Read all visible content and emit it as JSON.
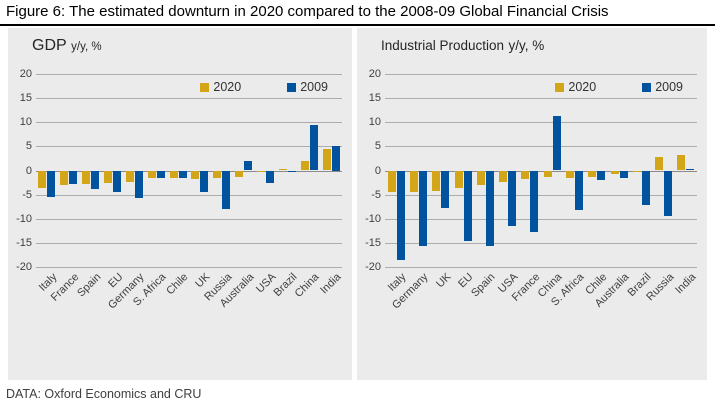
{
  "figure": {
    "title": "Figure 6: The estimated downturn in 2020 compared to the 2008-09 Global Financial Crisis",
    "source": "DATA: Oxford Economics and CRU"
  },
  "colors": {
    "series_2020": "#D3A518",
    "series_2009": "#00539C",
    "panel_bg": "#EBEBEB",
    "gridline": "#ACACAC",
    "text": "#404040"
  },
  "chart_data": [
    {
      "type": "bar",
      "title_main": "GDP",
      "title_suffix": "y/y, %",
      "categories": [
        "Italy",
        "France",
        "Spain",
        "EU",
        "Germany",
        "S. Africa",
        "Chile",
        "UK",
        "Russia",
        "Australia",
        "USA",
        "Brazil",
        "China",
        "India"
      ],
      "series": [
        {
          "name": "2020",
          "color": "#D3A518",
          "values": [
            -3.6,
            -3.1,
            -2.7,
            -2.6,
            -2.4,
            -1.6,
            -1.6,
            -1.7,
            -1.6,
            -1.3,
            -0.4,
            0.3,
            2.0,
            4.4
          ]
        },
        {
          "name": "2009",
          "color": "#00539C",
          "values": [
            -5.4,
            -2.9,
            -3.8,
            -4.5,
            -5.7,
            -1.5,
            -1.6,
            -4.4,
            -7.9,
            1.9,
            -2.5,
            -0.3,
            9.4,
            5.0
          ]
        }
      ],
      "ylim": [
        -20,
        20
      ],
      "ytick_step": 5,
      "grid": true,
      "legend_position": "top-right"
    },
    {
      "type": "bar",
      "title_main": "Industrial Production",
      "title_suffix": "y/y, %",
      "categories": [
        "Italy",
        "Germany",
        "UK",
        "EU",
        "Spain",
        "USA",
        "France",
        "China",
        "S. Africa",
        "Chile",
        "Australia",
        "Brazil",
        "Russia",
        "India"
      ],
      "series": [
        {
          "name": "2020",
          "color": "#D3A518",
          "values": [
            -4.4,
            -4.4,
            -4.3,
            -3.6,
            -3.1,
            -2.4,
            -1.8,
            -1.4,
            -1.5,
            -1.4,
            -0.8,
            -0.3,
            2.7,
            3.3
          ]
        },
        {
          "name": "2009",
          "color": "#00539C",
          "values": [
            -18.6,
            -15.6,
            -7.8,
            -14.7,
            -15.6,
            -11.5,
            -12.7,
            11.2,
            -8.2,
            -1.9,
            -1.5,
            -7.1,
            -9.4,
            0.3
          ]
        }
      ],
      "ylim": [
        -20,
        20
      ],
      "ytick_step": 5,
      "grid": true,
      "legend_position": "top-right"
    }
  ]
}
